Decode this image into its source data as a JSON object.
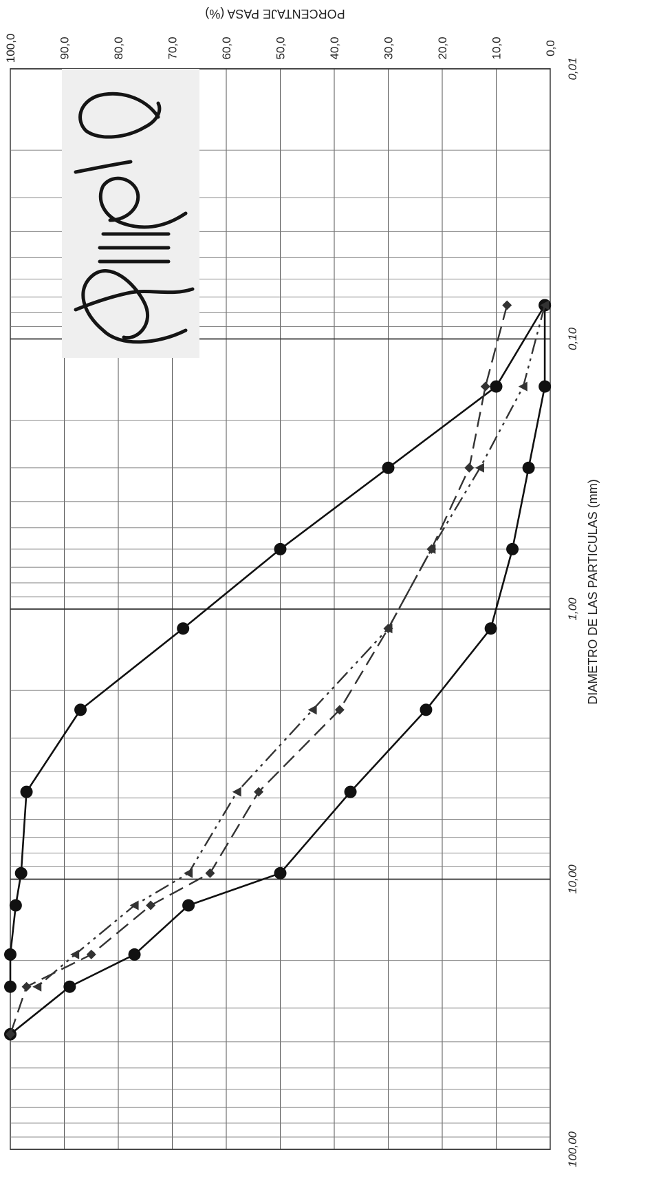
{
  "chart_data": {
    "type": "line",
    "title": "",
    "xlabel": "DIAMETRO DE LAS PARTICULAS (mm)",
    "ylabel": "PORCENTAJE PASA (%)",
    "x_scale": "log",
    "xlim": [
      0.01,
      100
    ],
    "ylim": [
      0,
      100
    ],
    "grid": true,
    "legend": "none",
    "x_tick_labels": [
      {
        "value": 0.01,
        "label": "0,01"
      },
      {
        "value": 0.1,
        "label": "0,10"
      },
      {
        "value": 1,
        "label": "1,00"
      },
      {
        "value": 10,
        "label": "10,00"
      },
      {
        "value": 100,
        "label": "100,00"
      }
    ],
    "y_tick_labels": [
      {
        "value": 0,
        "label": "0,0"
      },
      {
        "value": 10,
        "label": "10,0"
      },
      {
        "value": 20,
        "label": "20,0"
      },
      {
        "value": 30,
        "label": "30,0"
      },
      {
        "value": 40,
        "label": "40,0"
      },
      {
        "value": 50,
        "label": "50,0"
      },
      {
        "value": 60,
        "label": "60,0"
      },
      {
        "value": 70,
        "label": "70,0"
      },
      {
        "value": 80,
        "label": "80,0"
      },
      {
        "value": 90,
        "label": "90,0"
      },
      {
        "value": 100,
        "label": "100,0"
      }
    ],
    "series": [
      {
        "style": "solid",
        "marker": "circle",
        "color": "#111111",
        "x": [
          0.075,
          0.15,
          0.3,
          0.6,
          1.18,
          2.36,
          4.75,
          9.5,
          12.5,
          19,
          25
        ],
        "y": [
          1,
          10,
          30,
          50,
          68,
          87,
          97,
          98,
          99,
          100,
          100
        ]
      },
      {
        "style": "solid",
        "marker": "circle",
        "color": "#111111",
        "x": [
          0.075,
          0.15,
          0.3,
          0.6,
          1.18,
          2.36,
          4.75,
          9.5,
          12.5,
          19,
          25,
          37.5
        ],
        "y": [
          1,
          1,
          4,
          7,
          11,
          23,
          37,
          50,
          67,
          77,
          89,
          100
        ]
      },
      {
        "style": "dashed",
        "marker": "diamond",
        "color": "#333333",
        "x": [
          0.075,
          0.15,
          0.3,
          0.6,
          1.18,
          2.36,
          4.75,
          9.5,
          12.5,
          19,
          25,
          37.5
        ],
        "y": [
          8,
          12,
          15,
          22,
          30,
          39,
          54,
          63,
          74,
          85,
          97,
          100
        ]
      },
      {
        "style": "dash-dot-dot",
        "marker": "triangle",
        "color": "#333333",
        "x": [
          0.075,
          0.15,
          0.3,
          0.6,
          1.18,
          2.36,
          4.75,
          9.5,
          12.5,
          19,
          25
        ],
        "y": [
          1,
          5,
          13,
          22,
          30,
          44,
          58,
          67,
          77,
          88,
          95
        ]
      }
    ]
  }
}
